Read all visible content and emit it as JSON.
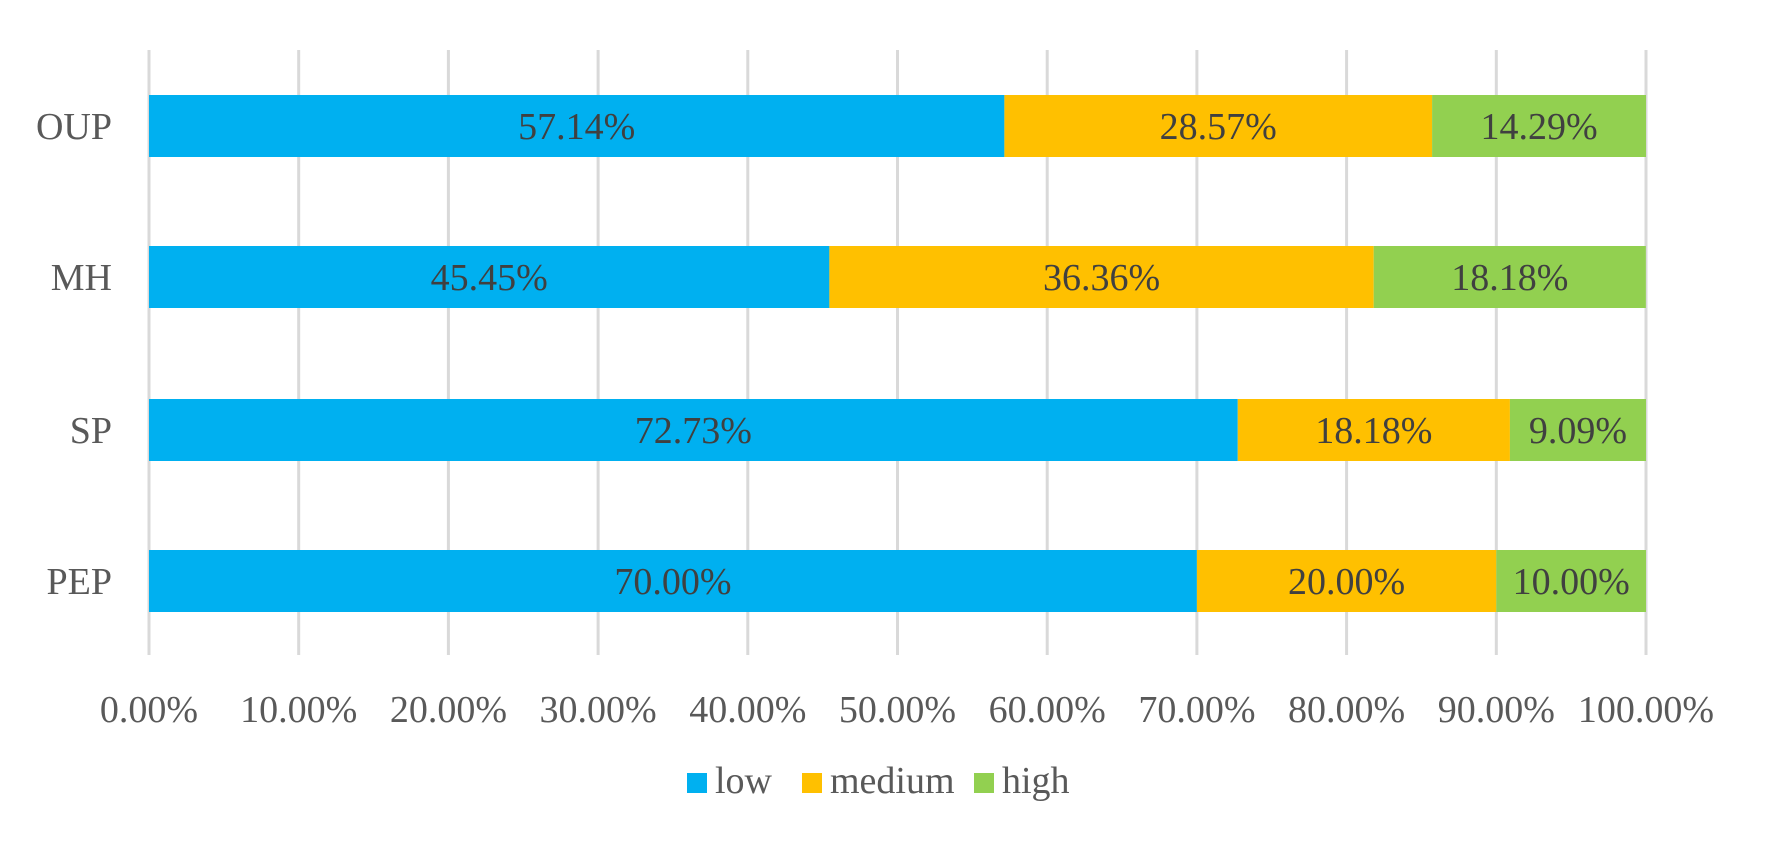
{
  "chart_data": {
    "type": "bar",
    "orientation": "horizontal",
    "stacked": true,
    "categories": [
      "OUP",
      "MH",
      "SP",
      "PEP"
    ],
    "series": [
      {
        "name": "low",
        "color": "#00B0F0",
        "values": [
          57.14,
          45.45,
          72.73,
          70.0
        ],
        "labels": [
          "57.14%",
          "45.45%",
          "72.73%",
          "70.00%"
        ]
      },
      {
        "name": "medium",
        "color": "#FFC000",
        "values": [
          28.57,
          36.36,
          18.18,
          20.0
        ],
        "labels": [
          "28.57%",
          "36.36%",
          "18.18%",
          "20.00%"
        ]
      },
      {
        "name": "high",
        "color": "#92D050",
        "values": [
          14.29,
          18.18,
          9.09,
          10.0
        ],
        "labels": [
          "14.29%",
          "18.18%",
          "9.09%",
          "10.00%"
        ]
      }
    ],
    "xlim": [
      0,
      100
    ],
    "xticks": [
      "0.00%",
      "10.00%",
      "20.00%",
      "30.00%",
      "40.00%",
      "50.00%",
      "60.00%",
      "70.00%",
      "80.00%",
      "90.00%",
      "100.00%"
    ],
    "grid": "vertical",
    "legend": "bottom",
    "title": "",
    "xlabel": "",
    "ylabel": ""
  }
}
